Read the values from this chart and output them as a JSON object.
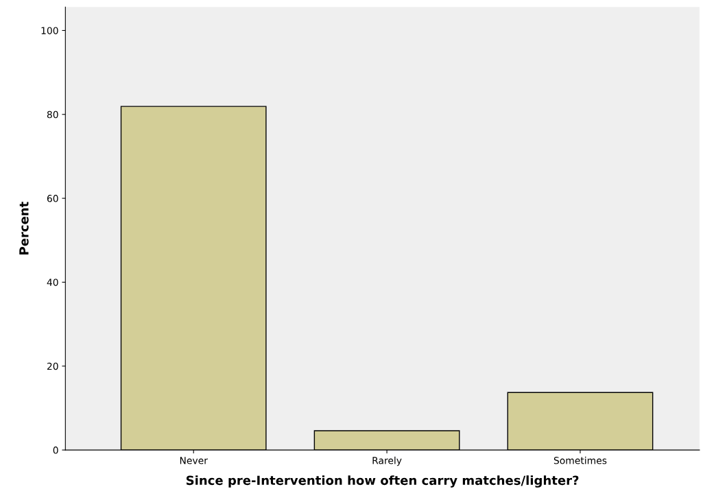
{
  "chart_data": {
    "type": "bar",
    "xlabel": "Since pre-Intervention how often carry matches/lighter?",
    "ylabel": "Percent",
    "categories": [
      "Never",
      "Rarely",
      "Sometimes"
    ],
    "values": [
      81.9,
      4.6,
      13.7
    ],
    "color": "#d3ce97",
    "ylim": [
      0,
      105.6
    ],
    "yticks": [
      0,
      20,
      40,
      60,
      80,
      100
    ],
    "grid": false
  }
}
